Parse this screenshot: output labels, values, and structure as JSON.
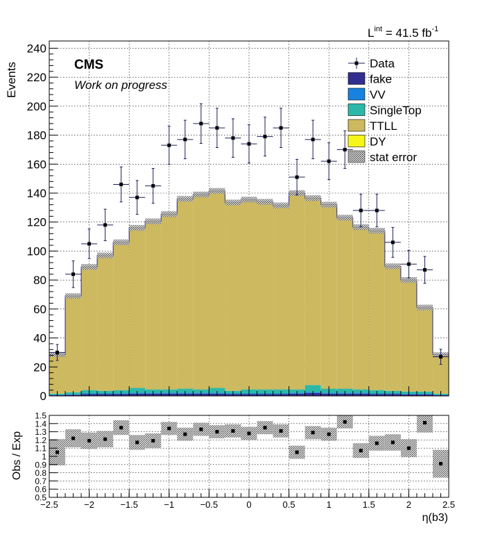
{
  "lumi": {
    "prefix": "L",
    "sup": "int",
    "value": " = 41.5 fb",
    "unit_sup": "-1"
  },
  "cms_label": "CMS",
  "work_label": "Work on progress",
  "chart_data": [
    {
      "type": "bar",
      "stacked": true,
      "panel": "main",
      "ylabel": "Events",
      "xlim": [
        -2.5,
        2.5
      ],
      "ylim": [
        0,
        245
      ],
      "yticks": [
        0,
        20,
        40,
        60,
        80,
        100,
        120,
        140,
        160,
        180,
        200,
        220,
        240
      ],
      "grid": true,
      "legend_position": "top-right",
      "bin_edges": [
        -2.5,
        -2.3,
        -2.1,
        -1.9,
        -1.7,
        -1.5,
        -1.3,
        -1.1,
        -0.9,
        -0.7,
        -0.5,
        -0.3,
        -0.1,
        0.1,
        0.3,
        0.5,
        0.7,
        0.9,
        1.1,
        1.3,
        1.5,
        1.7,
        1.9,
        2.1,
        2.3,
        2.5
      ],
      "series": [
        {
          "name": "fake",
          "color": "#312E8F",
          "values": [
            0.5,
            0.8,
            1.2,
            1.2,
            1.2,
            1.5,
            1.5,
            1.5,
            1.5,
            1.5,
            1.5,
            1.2,
            1.2,
            1.2,
            1.2,
            1.5,
            2.0,
            1.5,
            1.5,
            1.5,
            1.2,
            1.2,
            1.0,
            1.0,
            0.5
          ]
        },
        {
          "name": "VV",
          "color": "#1882E0",
          "values": [
            0.2,
            0.3,
            0.5,
            0.5,
            0.6,
            0.6,
            0.6,
            0.6,
            0.6,
            0.6,
            0.6,
            0.5,
            0.5,
            0.5,
            0.5,
            0.6,
            0.6,
            0.6,
            0.6,
            0.6,
            0.5,
            0.5,
            0.4,
            0.4,
            0.2
          ]
        },
        {
          "name": "SingleTop",
          "color": "#2CB8A8",
          "values": [
            0.8,
            1.4,
            2.3,
            1.8,
            2.2,
            3.4,
            2.4,
            2.4,
            2.9,
            2.4,
            3.4,
            1.8,
            2.8,
            2.8,
            2.8,
            2.4,
            4.9,
            2.9,
            2.9,
            2.4,
            2.3,
            1.8,
            1.6,
            1.6,
            0.8
          ]
        },
        {
          "name": "TTLL",
          "color": "#CDB95F",
          "values": [
            27,
            66.5,
            85,
            93.5,
            102,
            110.5,
            116,
            121,
            131,
            134.5,
            136,
            130,
            131,
            129.5,
            127,
            135.5,
            129,
            127,
            118,
            112,
            110,
            86,
            77,
            58,
            27
          ]
        },
        {
          "name": "DY",
          "color": "#F5F51A",
          "values": [
            0,
            0,
            0,
            0,
            0,
            0,
            0,
            0,
            0,
            0,
            0,
            0,
            0,
            0,
            0,
            0,
            0,
            0,
            0,
            0,
            0,
            0,
            0,
            0,
            0
          ]
        }
      ],
      "stat_error": {
        "name": "stat error",
        "values": [
          1.6,
          1.8,
          2.0,
          2.0,
          2.0,
          2.0,
          2.0,
          2.0,
          2.0,
          2.0,
          2.0,
          2.0,
          2.0,
          2.0,
          2.0,
          2.0,
          2.0,
          2.0,
          2.0,
          2.0,
          2.0,
          2.0,
          2.0,
          2.0,
          1.6
        ]
      },
      "data": {
        "name": "Data",
        "values": [
          30,
          84,
          105,
          118,
          146,
          137,
          145,
          173,
          177,
          188,
          185,
          178,
          174,
          179,
          185,
          151,
          177,
          162,
          170,
          128,
          128,
          106,
          91,
          87,
          27
        ],
        "errors": [
          5.5,
          9.2,
          10.2,
          10.9,
          12.1,
          11.7,
          12.0,
          13.2,
          13.3,
          13.7,
          13.6,
          13.3,
          13.2,
          13.4,
          13.6,
          12.3,
          13.3,
          12.7,
          13.0,
          11.3,
          11.3,
          10.3,
          9.5,
          9.3,
          5.2
        ]
      }
    },
    {
      "type": "scatter",
      "panel": "ratio",
      "xlabel": "η(b3)",
      "ylabel": "Obs / Exp",
      "xlim": [
        -2.5,
        2.5
      ],
      "ylim": [
        0.5,
        1.5
      ],
      "xticks": [
        "−2.5",
        "−2",
        "−1.5",
        "−1",
        "−0.5",
        "0",
        "0.5",
        "1",
        "1.5",
        "2",
        "2.5"
      ],
      "yticks": [
        "0.5",
        "0.6",
        "0.7",
        "0.8",
        "0.9",
        "1",
        "1.1",
        "1.2",
        "1.3",
        "1.4",
        "1.5"
      ],
      "grid": true,
      "x": [
        -2.4,
        -2.2,
        -2.0,
        -1.8,
        -1.6,
        -1.4,
        -1.2,
        -1.0,
        -0.8,
        -0.6,
        -0.4,
        -0.2,
        0.0,
        0.2,
        0.4,
        0.6,
        0.8,
        1.0,
        1.2,
        1.4,
        1.6,
        1.8,
        2.0,
        2.2,
        2.4
      ],
      "values": [
        1.05,
        1.22,
        1.19,
        1.21,
        1.35,
        1.17,
        1.19,
        1.34,
        1.27,
        1.33,
        1.3,
        1.31,
        1.28,
        1.35,
        1.31,
        1.05,
        1.29,
        1.27,
        1.42,
        1.07,
        1.16,
        1.17,
        1.1,
        1.41,
        0.91
      ],
      "band_halfwidth": [
        0.16,
        0.11,
        0.1,
        0.1,
        0.09,
        0.09,
        0.09,
        0.08,
        0.08,
        0.08,
        0.08,
        0.08,
        0.08,
        0.08,
        0.08,
        0.08,
        0.08,
        0.08,
        0.08,
        0.09,
        0.09,
        0.1,
        0.11,
        0.12,
        0.17
      ]
    }
  ]
}
